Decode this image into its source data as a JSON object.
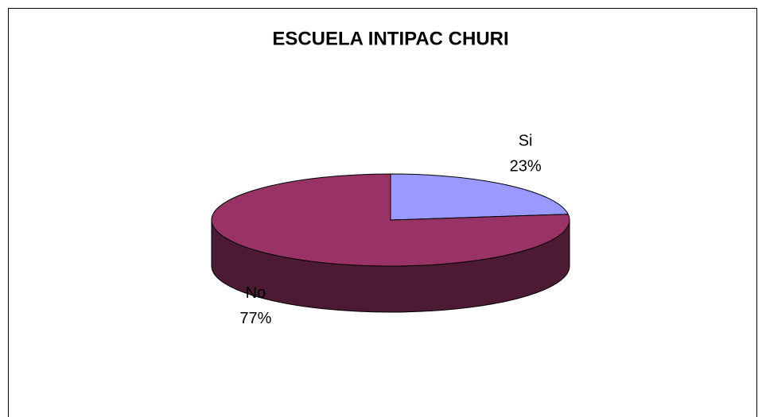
{
  "chart_data": {
    "type": "pie",
    "title": "ESCUELA INTIPAC CHURI",
    "categories": [
      "Si",
      "No"
    ],
    "values": [
      23,
      77
    ],
    "value_labels": [
      "23%",
      "77%"
    ],
    "colors": [
      "#9999ff",
      "#993366"
    ]
  }
}
